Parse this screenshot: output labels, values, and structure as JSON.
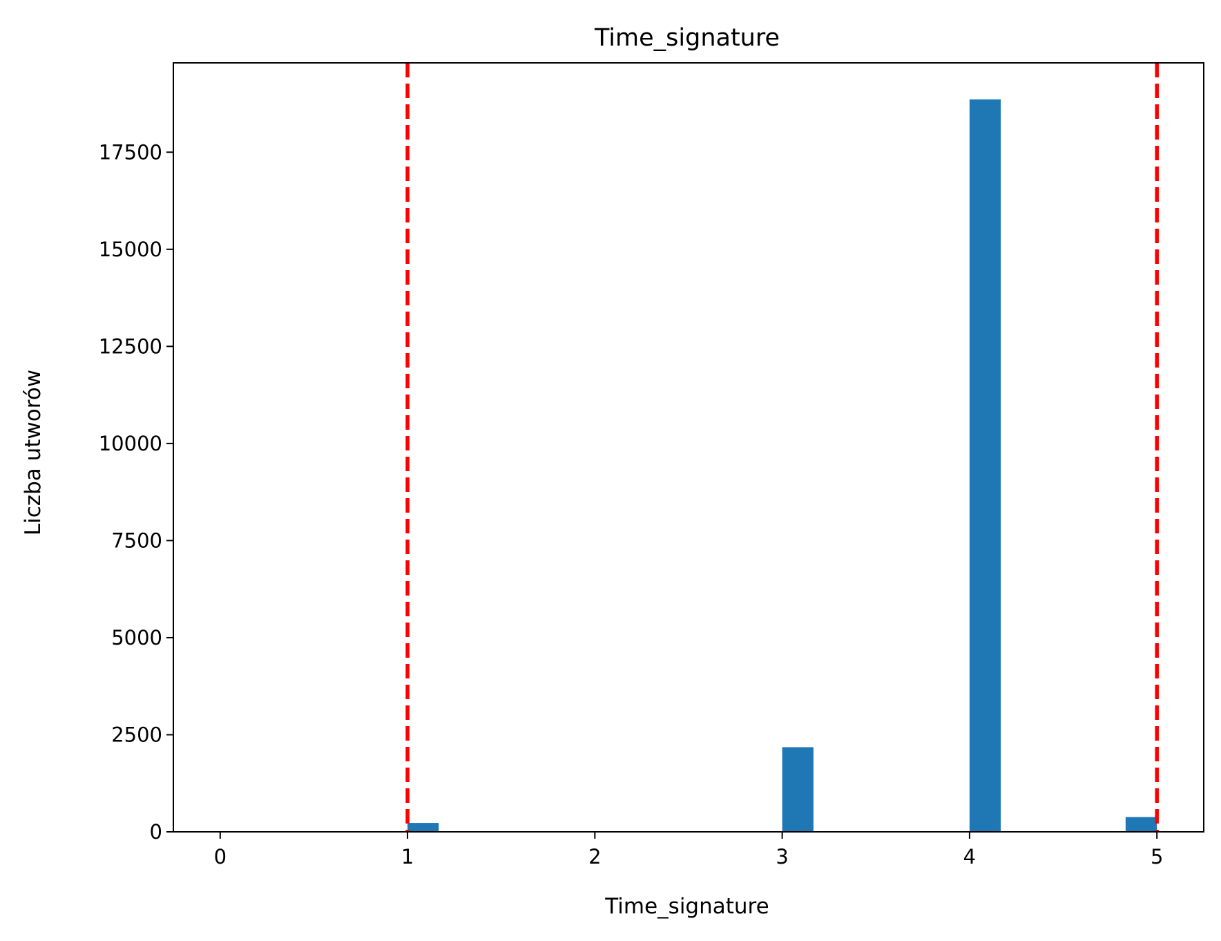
{
  "chart_data": {
    "type": "bar",
    "title": "Time_signature",
    "xlabel": "Time_signature",
    "ylabel": "Liczba utworów",
    "xlim": [
      -0.25,
      5.25
    ],
    "ylim": [
      0,
      19800
    ],
    "x_ticks": [
      0,
      1,
      2,
      3,
      4,
      5
    ],
    "y_ticks": [
      0,
      2500,
      5000,
      7500,
      10000,
      12500,
      15000,
      17500
    ],
    "bin_width": 0.1667,
    "bars": [
      {
        "x": 1.0,
        "value": 230
      },
      {
        "x": 3.0,
        "value": 2180
      },
      {
        "x": 4.0,
        "value": 18860
      },
      {
        "x": 4.833,
        "value": 380
      }
    ],
    "vlines": [
      {
        "x": 1,
        "style": "dashed",
        "color": "#ff0000"
      },
      {
        "x": 5,
        "style": "dashed",
        "color": "#ff0000"
      }
    ],
    "bar_color": "#1f77b4",
    "grid": false,
    "legend": "none"
  }
}
